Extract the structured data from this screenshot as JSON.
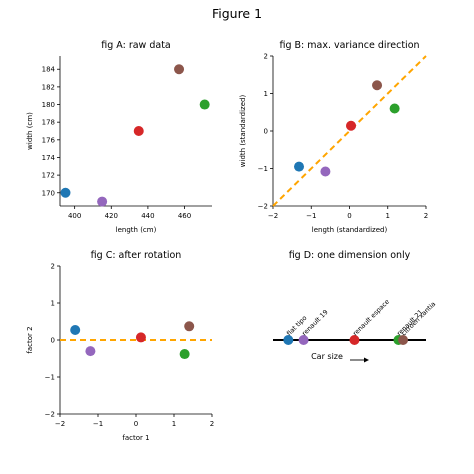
{
  "figure_title": "Figure 1",
  "colors": {
    "blue": "#1f77b4",
    "purple": "#9467bd",
    "red": "#d62728",
    "brown": "#8c564b",
    "green": "#2ca02c",
    "dashed_line": "#ffa500"
  },
  "chart_data": [
    {
      "id": "A",
      "type": "scatter",
      "title": "fig A: raw data",
      "xlabel": "length (cm)",
      "ylabel": "width (cm)",
      "xlim": [
        392,
        475
      ],
      "ylim": [
        168.5,
        185.5
      ],
      "xticks": [
        400,
        420,
        440,
        460
      ],
      "yticks": [
        170,
        172,
        174,
        176,
        178,
        180,
        182,
        184
      ],
      "points": [
        {
          "x": 395,
          "y": 170,
          "color": "#1f77b4"
        },
        {
          "x": 415,
          "y": 169,
          "color": "#9467bd"
        },
        {
          "x": 435,
          "y": 177,
          "color": "#d62728"
        },
        {
          "x": 457,
          "y": 184,
          "color": "#8c564b"
        },
        {
          "x": 471,
          "y": 180,
          "color": "#2ca02c"
        }
      ]
    },
    {
      "id": "B",
      "type": "scatter",
      "title": "fig B: max. variance direction",
      "xlabel": "length (standardized)",
      "ylabel": "width (standardized)",
      "xlim": [
        -2,
        2
      ],
      "ylim": [
        -2,
        2
      ],
      "xticks": [
        -2,
        -1,
        0,
        1,
        2
      ],
      "yticks": [
        -2,
        -1,
        0,
        1,
        2
      ],
      "points": [
        {
          "x": -1.32,
          "y": -0.95,
          "color": "#1f77b4"
        },
        {
          "x": -0.63,
          "y": -1.08,
          "color": "#9467bd"
        },
        {
          "x": 0.04,
          "y": 0.14,
          "color": "#d62728"
        },
        {
          "x": 0.72,
          "y": 1.22,
          "color": "#8c564b"
        },
        {
          "x": 1.18,
          "y": 0.6,
          "color": "#2ca02c"
        }
      ],
      "dashed_line": {
        "x": [
          -2,
          2
        ],
        "y": [
          -2,
          2
        ]
      }
    },
    {
      "id": "C",
      "type": "scatter",
      "title": "fig C: after rotation",
      "xlabel": "factor 1",
      "ylabel": "factor 2",
      "xlim": [
        -2,
        2
      ],
      "ylim": [
        -2,
        2
      ],
      "xticks": [
        -2,
        -1,
        0,
        1,
        2
      ],
      "yticks": [
        -2,
        -1,
        0,
        1,
        2
      ],
      "points": [
        {
          "x": -1.6,
          "y": 0.27,
          "color": "#1f77b4"
        },
        {
          "x": -1.2,
          "y": -0.3,
          "color": "#9467bd"
        },
        {
          "x": 0.13,
          "y": 0.07,
          "color": "#d62728"
        },
        {
          "x": 1.4,
          "y": 0.37,
          "color": "#8c564b"
        },
        {
          "x": 1.28,
          "y": -0.38,
          "color": "#2ca02c"
        }
      ],
      "dashed_line": {
        "x": [
          -2,
          2
        ],
        "y": [
          0,
          0
        ]
      }
    },
    {
      "id": "D",
      "type": "scatter",
      "title": "fig D: one dimension only",
      "xlabel": "Car size",
      "points": [
        {
          "x": -1.6,
          "label": "fiat tipo",
          "color": "#1f77b4"
        },
        {
          "x": -1.2,
          "label": "renault 19",
          "color": "#9467bd"
        },
        {
          "x": 0.13,
          "label": "renault espace",
          "color": "#d62728"
        },
        {
          "x": 1.28,
          "label": "renault 21",
          "color": "#2ca02c"
        },
        {
          "x": 1.4,
          "label": "citroen xantia",
          "color": "#8c564b"
        }
      ]
    }
  ]
}
